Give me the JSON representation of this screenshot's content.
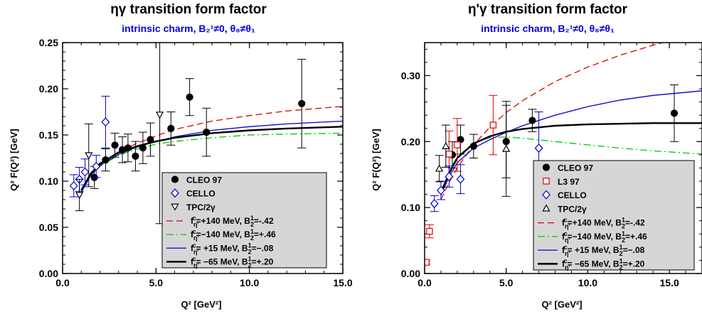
{
  "chart_data": [
    {
      "type": "scatter",
      "title": "ηγ transition form factor",
      "subtitle": "intrinsic charm,  B₂¹≠0, θ₈≠θ₁",
      "xlabel": "Q² [GeV²]",
      "ylabel": "Q² F(Q²) [GeV]",
      "xlim": [
        0,
        15
      ],
      "ylim": [
        0,
        0.25
      ],
      "xticks": [
        0,
        5,
        10,
        15
      ],
      "xtick_labels": [
        "0.0",
        "5.0",
        "10.0",
        "15.0"
      ],
      "yticks": [
        0,
        0.05,
        0.1,
        0.15,
        0.2,
        0.25
      ],
      "ytick_labels": [
        "0.00",
        "0.05",
        "0.10",
        "0.15",
        "0.20",
        "0.25"
      ],
      "data_series": [
        {
          "name": "CLEO 97",
          "marker": "filled-circle",
          "color": "#000000",
          "points": [
            [
              1.7,
              0.104,
              0.012
            ],
            [
              2.3,
              0.123,
              0.012
            ],
            [
              2.8,
              0.139,
              0.013
            ],
            [
              3.2,
              0.134,
              0.014
            ],
            [
              3.5,
              0.136,
              0.015
            ],
            [
              3.9,
              0.127,
              0.016
            ],
            [
              4.3,
              0.136,
              0.017
            ],
            [
              4.7,
              0.145,
              0.018
            ],
            [
              5.8,
              0.157,
              0.018
            ],
            [
              6.8,
              0.191,
              0.02
            ],
            [
              7.7,
              0.153,
              0.026
            ],
            [
              12.8,
              0.184,
              0.048
            ]
          ]
        },
        {
          "name": "CELLO",
          "marker": "open-diamond",
          "color": "#0000cc",
          "points": [
            [
              0.6,
              0.095,
              0.012
            ],
            [
              0.9,
              0.102,
              0.013
            ],
            [
              1.2,
              0.11,
              0.014
            ],
            [
              1.8,
              0.116,
              0.012
            ],
            [
              2.3,
              0.164,
              0.028
            ]
          ]
        },
        {
          "name": "TPC/2γ",
          "marker": "open-triangle-down",
          "color": "#000000",
          "points": [
            [
              0.9,
              0.085,
              0.017
            ],
            [
              1.4,
              0.128,
              0.034
            ],
            [
              5.2,
              0.172,
              0.118
            ]
          ]
        }
      ],
      "legend_entries": [
        {
          "marker": "filled-circle",
          "color": "#000000",
          "label": "CLEO 97"
        },
        {
          "marker": "open-diamond",
          "color": "#0000cc",
          "label": "CELLO"
        },
        {
          "marker": "open-triangle-down",
          "color": "#000000",
          "label": "TPC/2γ"
        },
        {
          "line": "dashed",
          "color": "#dd0000",
          "prefix": "f",
          "sub": "η'",
          "sup": "c",
          "mid": "=+140 MeV,  B",
          "sub2": "2",
          "sup2": "1",
          "suffix": "=-.42"
        },
        {
          "line": "dashdot",
          "color": "#00cc00",
          "prefix": "f",
          "sub": "η'",
          "sup": "c",
          "mid": "=−140 MeV,  B",
          "sub2": "2",
          "sup2": "1",
          "suffix": "=+.46"
        },
        {
          "line": "solid",
          "color": "#0000cc",
          "prefix": "f",
          "sub": "η'",
          "sup": "c",
          "mid": "= +15 MeV,  B",
          "sub2": "2",
          "sup2": "1",
          "suffix": "=−.08"
        },
        {
          "line": "solid-thick",
          "color": "#000000",
          "prefix": "f",
          "sub": "η'",
          "sup": "c",
          "mid": "= −65 MeV,  B",
          "sub2": "2",
          "sup2": "1",
          "suffix": "=+.20"
        }
      ],
      "curves": [
        {
          "color": "#dd0000",
          "style": "dashed",
          "points": [
            [
              1.0,
              0.088
            ],
            [
              1.5,
              0.106
            ],
            [
              2.0,
              0.118
            ],
            [
              3.0,
              0.132
            ],
            [
              4.0,
              0.141
            ],
            [
              5.0,
              0.149
            ],
            [
              6.0,
              0.156
            ],
            [
              8.0,
              0.165
            ],
            [
              10.0,
              0.171
            ],
            [
              12.0,
              0.176
            ],
            [
              15.0,
              0.181
            ]
          ]
        },
        {
          "color": "#00cc00",
          "style": "dashdot",
          "points": [
            [
              1.0,
              0.088
            ],
            [
              1.5,
              0.106
            ],
            [
              2.0,
              0.116
            ],
            [
              3.0,
              0.128
            ],
            [
              4.0,
              0.135
            ],
            [
              5.0,
              0.14
            ],
            [
              6.0,
              0.143
            ],
            [
              8.0,
              0.147
            ],
            [
              10.0,
              0.15
            ],
            [
              12.0,
              0.151
            ],
            [
              15.0,
              0.152
            ]
          ]
        },
        {
          "color": "#0000cc",
          "style": "solid",
          "points": [
            [
              1.0,
              0.088
            ],
            [
              1.5,
              0.106
            ],
            [
              2.0,
              0.117
            ],
            [
              3.0,
              0.129
            ],
            [
              4.0,
              0.137
            ],
            [
              5.0,
              0.143
            ],
            [
              6.0,
              0.148
            ],
            [
              8.0,
              0.155
            ],
            [
              10.0,
              0.159
            ],
            [
              12.0,
              0.162
            ],
            [
              15.0,
              0.165
            ]
          ]
        },
        {
          "color": "#000000",
          "style": "solid-thick",
          "points": [
            [
              1.0,
              0.09
            ],
            [
              1.5,
              0.108
            ],
            [
              2.0,
              0.119
            ],
            [
              3.0,
              0.131
            ],
            [
              4.0,
              0.138
            ],
            [
              5.0,
              0.143
            ],
            [
              6.0,
              0.147
            ],
            [
              8.0,
              0.152
            ],
            [
              10.0,
              0.155
            ],
            [
              12.0,
              0.157
            ],
            [
              15.0,
              0.159
            ]
          ]
        }
      ]
    },
    {
      "type": "scatter",
      "title": "η'γ transition form factor",
      "subtitle": "intrinsic charm, B₂¹≠0, θ₈≠θ₁",
      "xlabel": "Q² [GeV²]",
      "ylabel": "Q² F(Q²) [GeV]",
      "xlim": [
        0,
        17
      ],
      "ylim": [
        0,
        0.35
      ],
      "xticks": [
        0,
        5,
        10,
        15
      ],
      "xtick_labels": [
        "0.0",
        "5.0",
        "10.0",
        "15.0"
      ],
      "yticks": [
        0,
        0.1,
        0.2,
        0.3
      ],
      "ytick_labels": [
        "0.00",
        "0.10",
        "0.20",
        "0.30"
      ],
      "data_series": [
        {
          "name": "CLEO 97",
          "marker": "filled-circle",
          "color": "#000000",
          "points": [
            [
              1.7,
              0.18,
              0.02
            ],
            [
              2.2,
              0.203,
              0.022
            ],
            [
              3.0,
              0.193,
              0.018
            ],
            [
              5.0,
              0.2,
              0.055
            ],
            [
              6.6,
              0.232,
              0.017
            ],
            [
              15.3,
              0.243,
              0.043
            ]
          ]
        },
        {
          "name": "L3 97",
          "marker": "open-square",
          "color": "#dd0000",
          "points": [
            [
              0.1,
              0.017,
              0.003
            ],
            [
              0.3,
              0.064,
              0.01
            ],
            [
              1.5,
              0.181,
              0.035
            ],
            [
              2.0,
              0.195,
              0.04
            ],
            [
              4.2,
              0.225,
              0.045
            ]
          ]
        },
        {
          "name": "CELLO",
          "marker": "open-diamond",
          "color": "#0000cc",
          "points": [
            [
              0.6,
              0.106,
              0.012
            ],
            [
              1.0,
              0.126,
              0.014
            ],
            [
              1.5,
              0.147,
              0.016
            ],
            [
              2.2,
              0.143,
              0.022
            ],
            [
              7.0,
              0.19,
              0.055
            ]
          ]
        },
        {
          "name": "TPC/2γ",
          "marker": "open-triangle-up",
          "color": "#000000",
          "points": [
            [
              0.9,
              0.159,
              0.02
            ],
            [
              1.3,
              0.193,
              0.032
            ],
            [
              5.0,
              0.189,
              0.072
            ]
          ]
        }
      ],
      "legend_entries": [
        {
          "marker": "filled-circle",
          "color": "#000000",
          "label": "CLEO 97"
        },
        {
          "marker": "open-square",
          "color": "#dd0000",
          "label": "L3 97"
        },
        {
          "marker": "open-diamond",
          "color": "#0000cc",
          "label": "CELLO"
        },
        {
          "marker": "open-triangle-up",
          "color": "#000000",
          "label": "TPC/2γ"
        },
        {
          "line": "dashed",
          "color": "#dd0000",
          "prefix": "f",
          "sub": "η'",
          "sup": "c",
          "mid": "=+140 MeV,  B",
          "sub2": "2",
          "sup2": "1",
          "suffix": "=-.42"
        },
        {
          "line": "dashdot",
          "color": "#00cc00",
          "prefix": "f",
          "sub": "η'",
          "sup": "c",
          "mid": "=−140 MeV,  B",
          "sub2": "2",
          "sup2": "1",
          "suffix": "=+.46"
        },
        {
          "line": "solid",
          "color": "#0000cc",
          "prefix": "f",
          "sub": "η'",
          "sup": "c",
          "mid": "= +15 MeV,  B",
          "sub2": "2",
          "sup2": "1",
          "suffix": "=−.08"
        },
        {
          "line": "solid-thick",
          "color": "#000000",
          "prefix": "f",
          "sub": "η'",
          "sup": "c",
          "mid": "= −65 MeV,  B",
          "sub2": "2",
          "sup2": "1",
          "suffix": "=+.20"
        }
      ],
      "curves": [
        {
          "color": "#dd0000",
          "style": "dashed",
          "points": [
            [
              1.0,
              0.112
            ],
            [
              1.5,
              0.138
            ],
            [
              2.0,
              0.16
            ],
            [
              3.0,
              0.195
            ],
            [
              4.0,
              0.222
            ],
            [
              5.0,
              0.244
            ],
            [
              6.0,
              0.262
            ],
            [
              8.0,
              0.291
            ],
            [
              10.0,
              0.313
            ],
            [
              12.0,
              0.331
            ],
            [
              14.0,
              0.346
            ],
            [
              14.6,
              0.35
            ]
          ]
        },
        {
          "color": "#00cc00",
          "style": "dashdot",
          "points": [
            [
              1.0,
              0.125
            ],
            [
              1.5,
              0.155
            ],
            [
              2.0,
              0.177
            ],
            [
              3.0,
              0.198
            ],
            [
              4.0,
              0.206
            ],
            [
              5.0,
              0.207
            ],
            [
              6.0,
              0.205
            ],
            [
              8.0,
              0.2
            ],
            [
              10.0,
              0.195
            ],
            [
              12.0,
              0.19
            ],
            [
              14.0,
              0.186
            ],
            [
              17.0,
              0.181
            ]
          ]
        },
        {
          "color": "#0000cc",
          "style": "solid",
          "points": [
            [
              1.0,
              0.118
            ],
            [
              1.5,
              0.147
            ],
            [
              2.0,
              0.168
            ],
            [
              3.0,
              0.19
            ],
            [
              4.0,
              0.203
            ],
            [
              5.0,
              0.214
            ],
            [
              6.0,
              0.224
            ],
            [
              8.0,
              0.24
            ],
            [
              10.0,
              0.253
            ],
            [
              12.0,
              0.263
            ],
            [
              14.0,
              0.27
            ],
            [
              17.0,
              0.277
            ]
          ]
        },
        {
          "color": "#000000",
          "style": "solid-thick",
          "points": [
            [
              1.0,
              0.122
            ],
            [
              1.5,
              0.152
            ],
            [
              2.0,
              0.175
            ],
            [
              3.0,
              0.197
            ],
            [
              4.0,
              0.208
            ],
            [
              5.0,
              0.215
            ],
            [
              6.0,
              0.219
            ],
            [
              8.0,
              0.224
            ],
            [
              10.0,
              0.226
            ],
            [
              12.0,
              0.227
            ],
            [
              14.0,
              0.228
            ],
            [
              17.0,
              0.228
            ]
          ]
        }
      ]
    }
  ]
}
